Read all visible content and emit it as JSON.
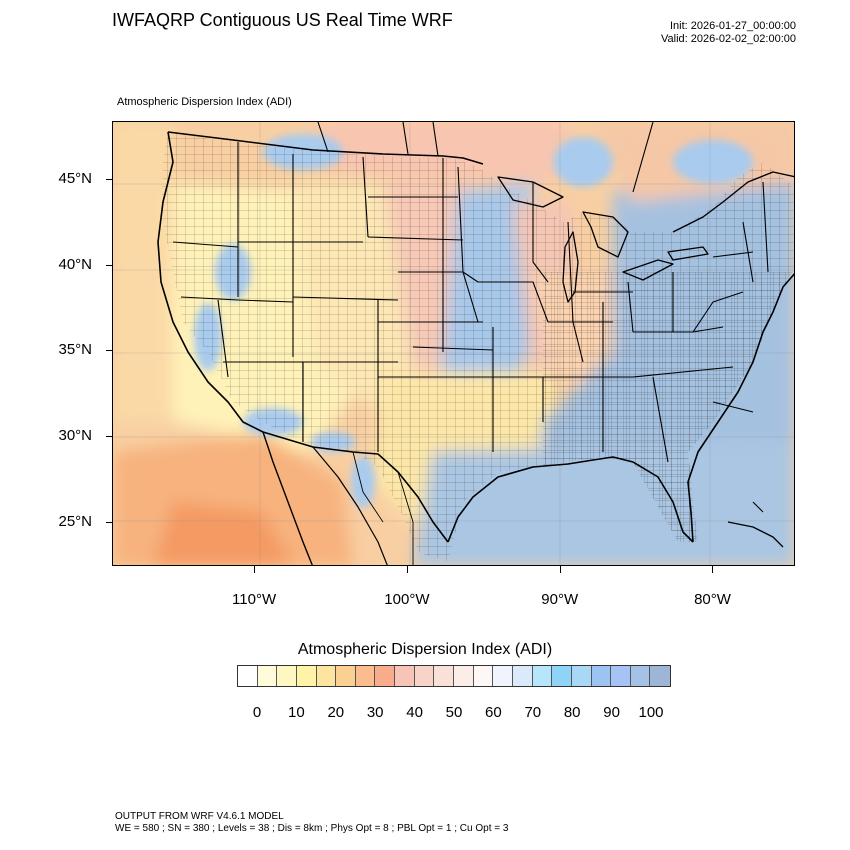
{
  "header": {
    "title": "IWFAQRP Contiguous US Real Time WRF",
    "init": "Init: 2026-01-27_00:00:00",
    "valid": "Valid: 2026-02-02_02:00:00"
  },
  "map": {
    "field_label": "Atmospheric Dispersion Index   (ADI)",
    "latitude_labels": [
      "45°N",
      "40°N",
      "35°N",
      "30°N",
      "25°N"
    ],
    "longitude_labels": [
      "110°W",
      "100°W",
      "90°W",
      "80°W"
    ],
    "lon_range": [
      -119.3,
      -74.6
    ],
    "lat_range": [
      22.4,
      48.4
    ],
    "lat_ticks": [
      45,
      40,
      35,
      30,
      25
    ],
    "lon_ticks": [
      -110,
      -100,
      -90,
      -80
    ]
  },
  "colorbar": {
    "title": "Atmospheric Dispersion Index  (ADI)",
    "tick_labels": [
      "0",
      "10",
      "20",
      "30",
      "40",
      "50",
      "60",
      "70",
      "80",
      "90",
      "100"
    ],
    "colors": [
      "#ffffff",
      "#fffbdb",
      "#fff7c2",
      "#fff3a8",
      "#fde5a0",
      "#fbd193",
      "#fbbd8d",
      "#f9ac8c",
      "#f7c4b7",
      "#f7d3c8",
      "#f9e1d8",
      "#fbeee8",
      "#fdf8f6",
      "#f0f4fc",
      "#dbeafa",
      "#b5e6fc",
      "#8fd3f7",
      "#a9d8f6",
      "#9cc3f2",
      "#a7c3f5",
      "#a4c2e6",
      "#9db6d6"
    ]
  },
  "footer": {
    "line1": "OUTPUT FROM WRF V4.6.1 MODEL",
    "line2": "WE = 580 ; SN = 380 ; Levels = 38 ; Dis = 8km ; Phys Opt = 8 ; PBL Opt = 1 ; Cu Opt = 3"
  }
}
